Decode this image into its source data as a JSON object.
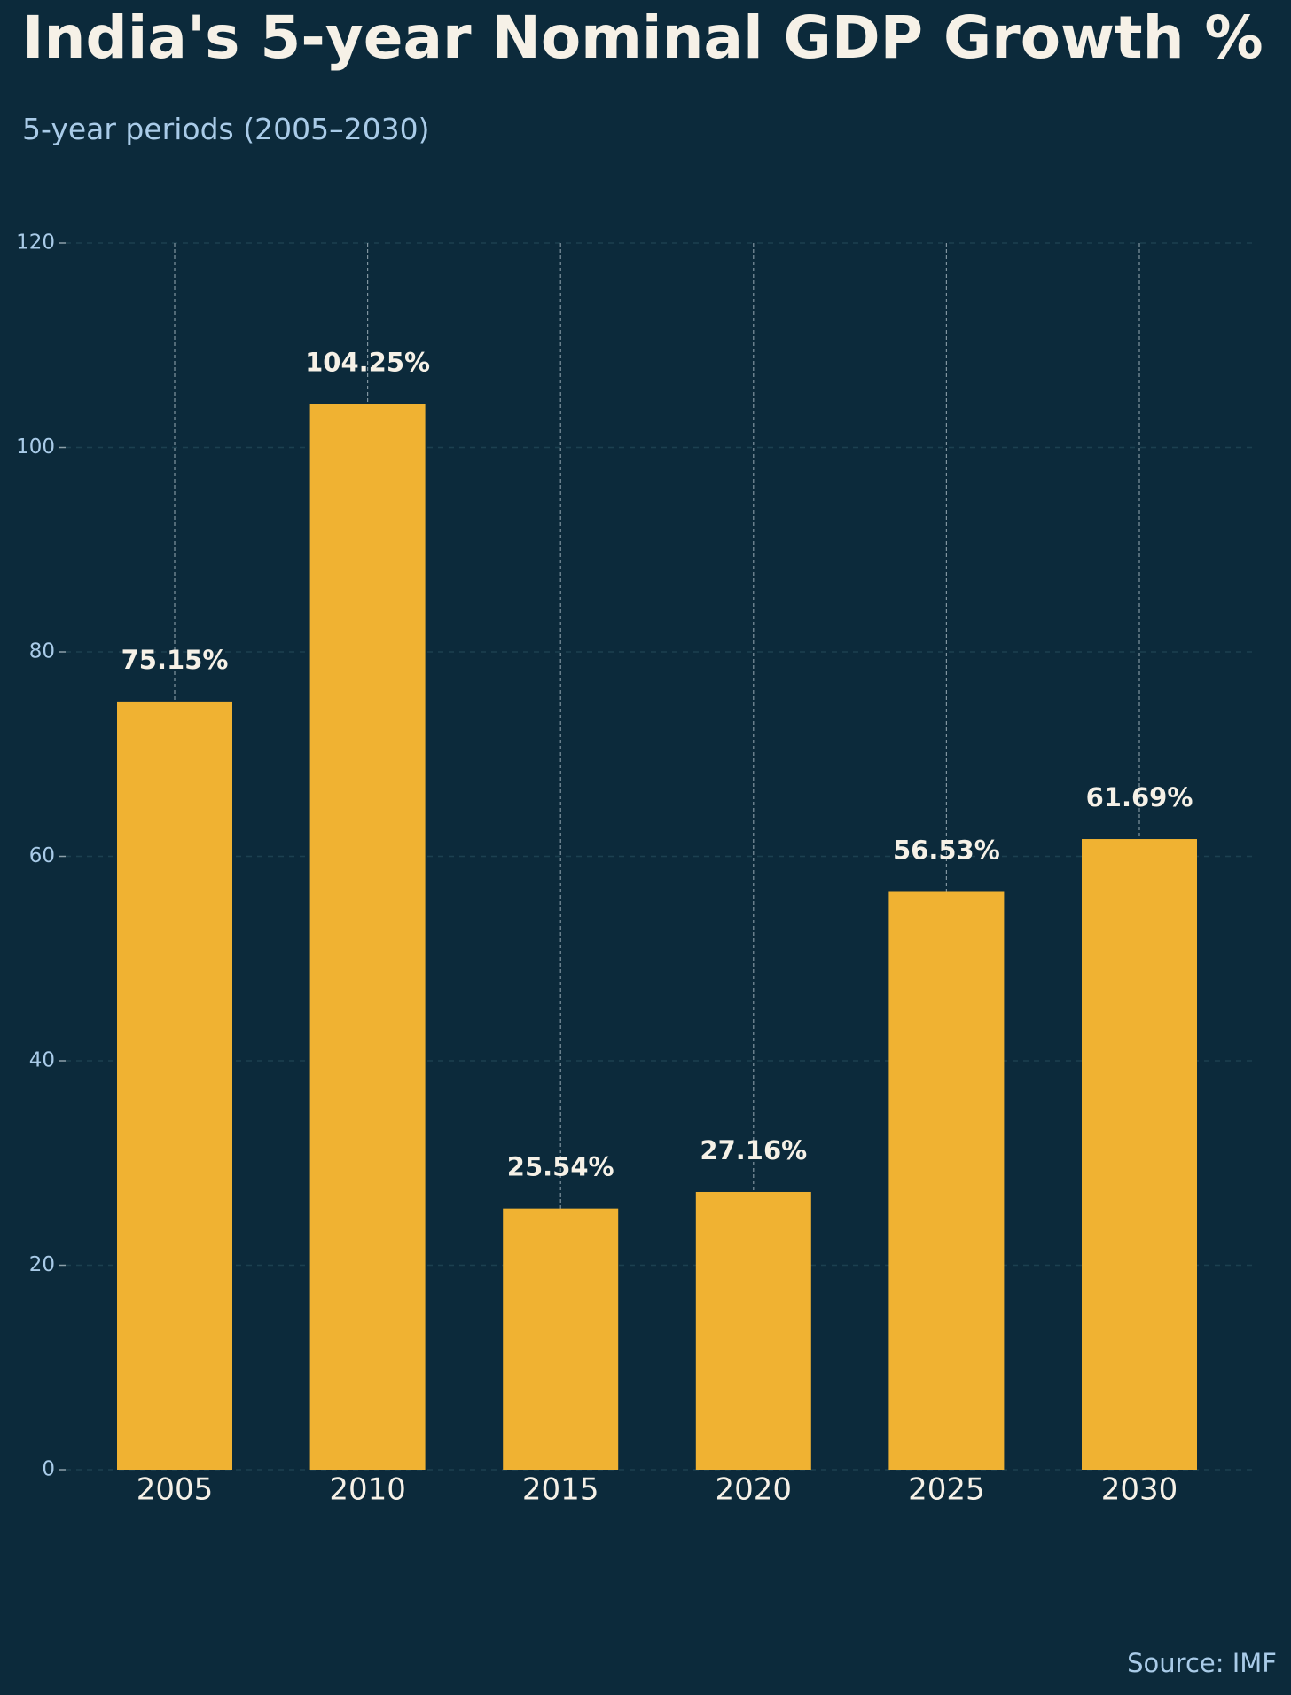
{
  "chart_data": {
    "type": "bar",
    "title": "India's 5-year Nominal GDP Growth %",
    "subtitle": "5-year periods (2005–2030)",
    "source": "Source: IMF",
    "xlabel": "",
    "ylabel": "",
    "categories": [
      "2005",
      "2010",
      "2015",
      "2020",
      "2025",
      "2030"
    ],
    "values": [
      75.15,
      104.25,
      25.54,
      27.16,
      56.53,
      61.69
    ],
    "value_labels": [
      "75.15%",
      "104.25%",
      "25.54%",
      "27.16%",
      "56.53%",
      "61.69%"
    ],
    "ylim": [
      0,
      120
    ],
    "yticks": [
      "0",
      "20",
      "40",
      "60",
      "80",
      "100",
      "120"
    ],
    "grid": true,
    "colors": {
      "background": "#0c2a3b",
      "bar": "#f0b232",
      "text": "#f6f1e7",
      "muted_text": "#a9cbe8",
      "grid": "#1c4050",
      "vline": "#8da0aa"
    }
  }
}
